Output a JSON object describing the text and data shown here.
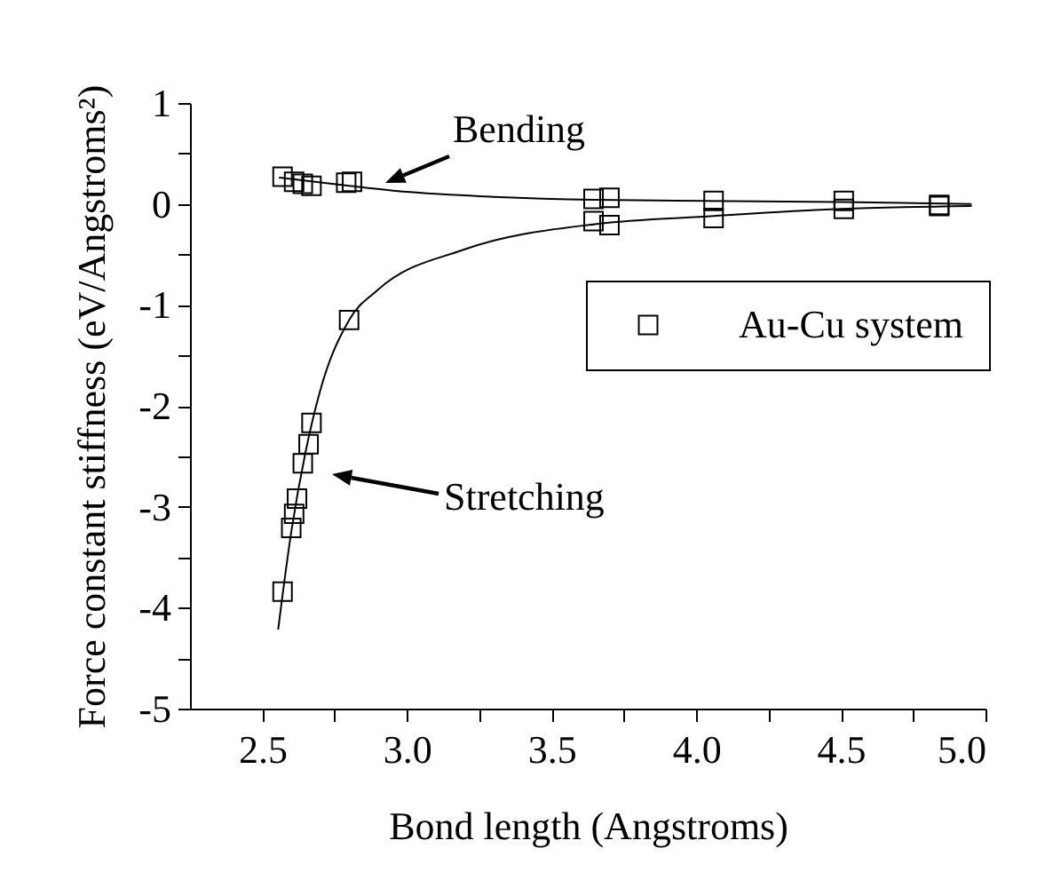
{
  "chart_data": {
    "type": "scatter",
    "xlabel": "Bond length (Angstroms)",
    "ylabel": "Force constant stiffness (eV/Angstroms²)",
    "xlim": [
      2.25,
      5.0
    ],
    "ylim": [
      -5,
      1
    ],
    "xticks": [
      {
        "value": 2.5,
        "label": "2.5"
      },
      {
        "value": 2.75,
        "label": null
      },
      {
        "value": 3,
        "label": "3.0"
      },
      {
        "value": 3.25,
        "label": null
      },
      {
        "value": 3.5,
        "label": "3.5"
      },
      {
        "value": 3.75,
        "label": null
      },
      {
        "value": 4,
        "label": "4.0"
      },
      {
        "value": 4.25,
        "label": null
      },
      {
        "value": 4.5,
        "label": "4.5"
      },
      {
        "value": 4.75,
        "label": null
      },
      {
        "value": 5,
        "label": "5.0"
      }
    ],
    "yticks": [
      -5,
      {
        "value": -4.5,
        "label": null
      },
      -4,
      {
        "value": -3.5,
        "label": null
      },
      -3,
      {
        "value": -2.5,
        "label": null
      },
      -2,
      {
        "value": -1.5,
        "label": null
      },
      -1,
      {
        "value": -0.5,
        "label": null
      },
      0,
      {
        "value": 0.5,
        "label": null
      },
      1
    ],
    "legend": "right",
    "series": [
      {
        "name": "Au-Cu system",
        "color": "#000000",
        "marker": "square",
        "x": [
          2.57,
          2.61,
          2.64,
          2.67,
          2.79,
          2.81,
          3.645,
          3.7,
          4.06,
          4.51,
          4.84,
          3.645,
          3.7,
          4.06,
          4.51,
          4.84,
          2.8,
          2.67,
          2.66,
          2.64,
          2.62,
          2.61,
          2.6,
          2.57
        ],
        "values": [
          0.27,
          0.22,
          0.2,
          0.18,
          0.21,
          0.22,
          0.05,
          0.06,
          0.03,
          0.03,
          -0.01,
          -0.17,
          -0.21,
          -0.14,
          -0.05,
          -0.02,
          -1.15,
          -2.17,
          -2.38,
          -2.57,
          -2.92,
          -3.07,
          -3.21,
          -3.84
        ]
      },
      {
        "type": "line",
        "color": "#000000",
        "x": [
          2.56,
          2.8,
          3.0,
          3.3,
          3.65,
          4.5,
          4.95
        ],
        "values": [
          0.26,
          0.18,
          0.12,
          0.07,
          0.04,
          0.02,
          0.0
        ]
      },
      {
        "type": "line",
        "color": "#000000",
        "x": [
          2.555,
          2.6,
          2.65,
          2.7,
          2.8,
          2.9,
          3.2,
          3.65,
          4.06,
          4.5,
          4.95
        ],
        "values": [
          -4.21,
          -3.25,
          -2.45,
          -1.85,
          -1.15,
          -0.85,
          -0.45,
          -0.2,
          -0.12,
          -0.05,
          -0.02
        ]
      }
    ],
    "annotations": [
      "Bending",
      "Stretching"
    ]
  }
}
